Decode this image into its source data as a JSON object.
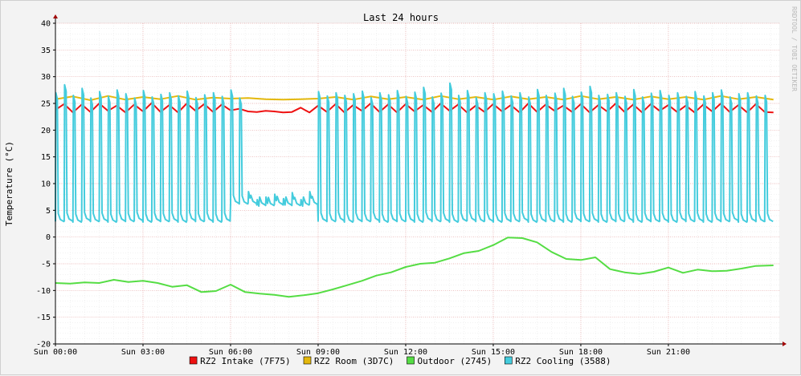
{
  "watermark": "RRDTOOL / TOBI OETIKER",
  "chart_data": {
    "type": "line",
    "title": "Last 24 hours",
    "ylabel": "Temperature (°C)",
    "xlabel": "",
    "ylim": [
      -20,
      40
    ],
    "xlim": [
      0,
      24.8
    ],
    "yticks": [
      40,
      35,
      30,
      25,
      20,
      15,
      10,
      5,
      0,
      -5,
      -10,
      -15,
      -20
    ],
    "xticks": [
      {
        "label": "Sun 00:00",
        "hour": 0
      },
      {
        "label": "Sun 03:00",
        "hour": 3
      },
      {
        "label": "Sun 06:00",
        "hour": 6
      },
      {
        "label": "Sun 09:00",
        "hour": 9
      },
      {
        "label": "Sun 12:00",
        "hour": 12
      },
      {
        "label": "Sun 15:00",
        "hour": 15
      },
      {
        "label": "Sun 18:00",
        "hour": 18
      },
      {
        "label": "Sun 21:00",
        "hour": 21
      }
    ],
    "grid": true,
    "legend_position": "bottom",
    "series": [
      {
        "name": "RZ2 Intake (7F75)",
        "color": "#ee1111",
        "x": [
          0,
          0.3,
          0.6,
          0.9,
          1.2,
          1.5,
          1.8,
          2.1,
          2.4,
          2.7,
          3.0,
          3.3,
          3.6,
          3.9,
          4.2,
          4.5,
          4.8,
          5.1,
          5.4,
          5.7,
          6.0,
          6.3,
          6.6,
          6.9,
          7.2,
          7.5,
          7.8,
          8.1,
          8.4,
          8.7,
          9.0,
          9.3,
          9.6,
          9.9,
          10.2,
          10.5,
          10.8,
          11.1,
          11.4,
          11.7,
          12.0,
          12.3,
          12.6,
          12.9,
          13.2,
          13.5,
          13.8,
          14.1,
          14.4,
          14.7,
          15.0,
          15.3,
          15.6,
          15.9,
          16.2,
          16.5,
          16.8,
          17.1,
          17.4,
          17.7,
          18.0,
          18.3,
          18.6,
          18.9,
          19.2,
          19.5,
          19.8,
          20.1,
          20.4,
          20.7,
          21.0,
          21.3,
          21.6,
          21.9,
          22.2,
          22.5,
          22.8,
          23.1,
          23.4,
          23.7,
          24.0,
          24.3,
          24.6
        ],
        "values": [
          23.8,
          24.9,
          23.3,
          24.8,
          23.4,
          25.0,
          23.6,
          24.6,
          23.3,
          24.8,
          23.5,
          25.1,
          23.4,
          24.7,
          23.3,
          25.0,
          23.6,
          24.9,
          23.4,
          24.8,
          23.7,
          24.0,
          23.5,
          23.4,
          23.6,
          23.5,
          23.3,
          23.4,
          24.2,
          23.3,
          24.6,
          23.4,
          24.9,
          23.3,
          24.7,
          23.6,
          25.0,
          23.4,
          24.8,
          23.3,
          24.9,
          23.5,
          24.7,
          23.4,
          25.0,
          23.6,
          24.8,
          23.3,
          24.6,
          23.4,
          24.9,
          23.5,
          24.7,
          23.3,
          25.0,
          23.4,
          24.8,
          23.6,
          24.6,
          23.4,
          24.9,
          23.3,
          24.7,
          23.5,
          25.0,
          23.4,
          24.8,
          23.3,
          24.9,
          23.6,
          24.7,
          23.4,
          24.6,
          23.3,
          24.8,
          23.5,
          25.0,
          23.4,
          24.7,
          23.3,
          24.9,
          23.4,
          23.3
        ]
      },
      {
        "name": "RZ2 Room (3D7C)",
        "color": "#e4b80c",
        "x": [
          0,
          0.6,
          1.2,
          1.8,
          2.4,
          3.0,
          3.6,
          4.2,
          4.8,
          5.4,
          6.0,
          6.6,
          7.2,
          7.8,
          8.4,
          9.0,
          9.6,
          10.2,
          10.8,
          11.4,
          12.0,
          12.6,
          13.2,
          13.8,
          14.4,
          15.0,
          15.6,
          16.2,
          16.8,
          17.4,
          18.0,
          18.6,
          19.2,
          19.8,
          20.4,
          21.0,
          21.6,
          22.2,
          22.8,
          23.4,
          24.0,
          24.6
        ],
        "values": [
          25.8,
          26.3,
          25.6,
          26.4,
          25.7,
          26.2,
          25.8,
          26.4,
          25.7,
          26.1,
          25.9,
          26.0,
          25.8,
          25.7,
          25.8,
          25.9,
          26.2,
          25.7,
          26.3,
          25.8,
          26.2,
          25.7,
          26.4,
          25.8,
          26.2,
          25.7,
          26.3,
          25.8,
          26.2,
          25.7,
          26.4,
          25.8,
          26.2,
          25.7,
          26.3,
          25.8,
          26.2,
          25.7,
          26.4,
          25.8,
          26.2,
          25.7
        ]
      },
      {
        "name": "Outdoor (2745)",
        "color": "#55dd44",
        "x": [
          0,
          0.5,
          1.0,
          1.5,
          2.0,
          2.5,
          3.0,
          3.5,
          4.0,
          4.5,
          5.0,
          5.5,
          6.0,
          6.5,
          7.0,
          7.5,
          8.0,
          8.5,
          9.0,
          9.5,
          10.0,
          10.5,
          11.0,
          11.5,
          12.0,
          12.5,
          13.0,
          13.5,
          14.0,
          14.5,
          15.0,
          15.5,
          16.0,
          16.5,
          17.0,
          17.5,
          18.0,
          18.5,
          19.0,
          19.5,
          20.0,
          20.5,
          21.0,
          21.5,
          22.0,
          22.5,
          23.0,
          23.5,
          24.0,
          24.6
        ],
        "values": [
          -8.6,
          -8.7,
          -8.5,
          -8.6,
          -8.0,
          -8.4,
          -8.2,
          -8.6,
          -9.3,
          -9.0,
          -10.3,
          -10.1,
          -8.9,
          -10.3,
          -10.6,
          -10.8,
          -11.2,
          -10.9,
          -10.5,
          -9.8,
          -9.0,
          -8.2,
          -7.2,
          -6.6,
          -5.6,
          -5.0,
          -4.8,
          -4.0,
          -3.0,
          -2.6,
          -1.5,
          -0.1,
          -0.2,
          -1.0,
          -2.8,
          -4.1,
          -4.3,
          -3.8,
          -6.0,
          -6.6,
          -6.9,
          -6.5,
          -5.7,
          -6.7,
          -6.1,
          -6.4,
          -6.3,
          -5.9,
          -5.4,
          -5.3
        ]
      },
      {
        "name": "RZ2 Cooling (3588)",
        "color": "#44ccdd",
        "cycle_hours": [
          0,
          0.3,
          0.6,
          0.9,
          1.2,
          1.5,
          1.8,
          2.1,
          2.4,
          2.7,
          3.0,
          3.3,
          3.6,
          3.9,
          4.2,
          4.5,
          4.8,
          5.1,
          5.4,
          5.7,
          6.0,
          6.3,
          6.6,
          6.9,
          7.2,
          7.5,
          7.8,
          8.1,
          8.4,
          8.7,
          9.0,
          9.3,
          9.6,
          9.9,
          10.2,
          10.5,
          10.8,
          11.1,
          11.4,
          11.7,
          12.0,
          12.3,
          12.6,
          12.9,
          13.2,
          13.5,
          13.8,
          14.1,
          14.4,
          14.7,
          15.0,
          15.3,
          15.6,
          15.9,
          16.2,
          16.5,
          16.8,
          17.1,
          17.4,
          17.7,
          18.0,
          18.3,
          18.6,
          18.9,
          19.2,
          19.5,
          19.8,
          20.1,
          20.4,
          20.7,
          21.0,
          21.3,
          21.6,
          21.9,
          22.2,
          22.5,
          22.8,
          23.1,
          23.4,
          23.7,
          24.0,
          24.3
        ],
        "peaks": [
          27.0,
          28.5,
          26.5,
          27.8,
          26.0,
          27.2,
          26.3,
          27.5,
          26.8,
          26.0,
          27.4,
          26.2,
          26.7,
          27.0,
          26.4,
          27.3,
          26.1,
          26.6,
          27.0,
          26.3,
          27.5,
          26.0,
          8.5,
          7.0,
          7.5,
          8.0,
          7.2,
          8.3,
          7.0,
          8.5,
          27.2,
          26.4,
          27.0,
          26.5,
          26.8,
          27.3,
          26.1,
          27.0,
          26.6,
          27.4,
          26.3,
          27.1,
          28.0,
          26.2,
          26.9,
          28.8,
          26.5,
          27.4,
          26.1,
          27.0,
          26.8,
          27.3,
          26.4,
          27.0,
          26.2,
          27.6,
          26.5,
          26.9,
          27.8,
          26.3,
          27.1,
          28.2,
          26.5,
          26.7,
          27.0,
          26.3,
          27.6,
          26.2,
          26.9,
          27.4,
          26.5,
          27.0,
          26.3,
          27.2,
          26.4,
          27.0,
          27.5,
          26.2,
          26.8,
          27.0,
          26.4,
          26.5
        ],
        "troughs": [
          2.9,
          3.0,
          2.8,
          3.1,
          2.9,
          3.0,
          2.8,
          3.0,
          2.9,
          3.1,
          2.8,
          3.0,
          2.9,
          3.0,
          2.8,
          3.1,
          2.9,
          3.0,
          2.8,
          3.0,
          6.3,
          6.2,
          6.3,
          6.0,
          5.9,
          6.1,
          6.0,
          5.9,
          6.0,
          6.1,
          3.0,
          2.9,
          3.1,
          2.8,
          3.0,
          2.9,
          3.1,
          2.8,
          3.0,
          2.9,
          3.0,
          2.8,
          3.1,
          2.9,
          3.0,
          2.8,
          3.0,
          3.1,
          2.9,
          3.0,
          2.8,
          3.0,
          2.9,
          3.1,
          2.8,
          3.0,
          2.9,
          3.0,
          2.8,
          3.1,
          2.9,
          3.0,
          2.8,
          3.0,
          2.9,
          3.1,
          2.8,
          3.0,
          2.9,
          3.0,
          2.8,
          3.1,
          2.9,
          3.0,
          2.8,
          3.0,
          2.9,
          3.1,
          2.8,
          3.0,
          2.9,
          2.9
        ]
      }
    ]
  }
}
